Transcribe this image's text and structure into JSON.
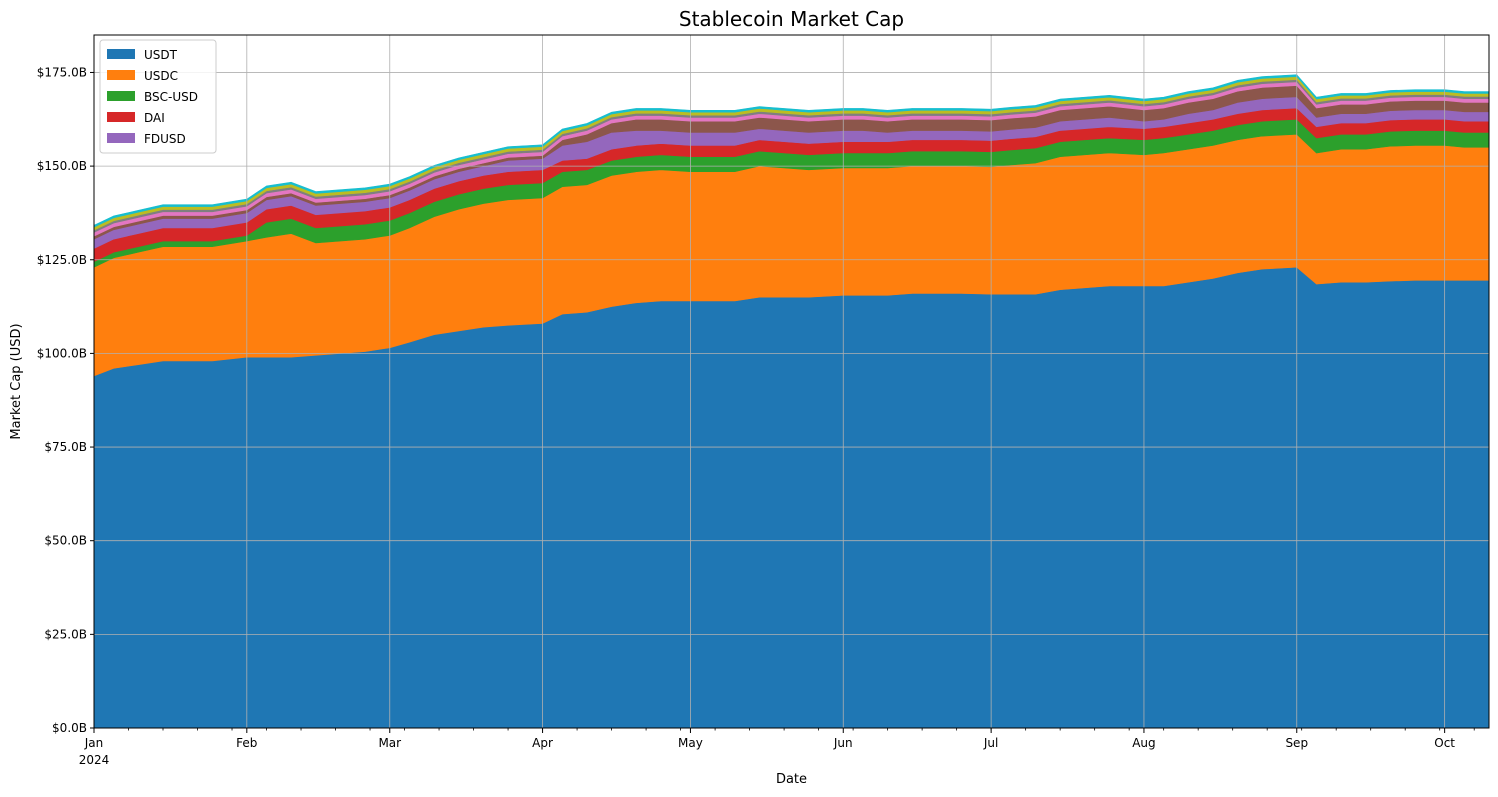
{
  "chart_data": {
    "type": "area",
    "stacked": true,
    "title": "Stablecoin Market Cap",
    "xlabel": "Date",
    "ylabel": "Market Cap (USD)",
    "x_range": [
      "2024-01-01",
      "2024-10-10"
    ],
    "ylim": [
      0,
      185
    ],
    "y_unit": "billion USD",
    "y_ticks": [
      0,
      25,
      50,
      75,
      100,
      125,
      150,
      175
    ],
    "y_tick_labels": [
      "$0.0B",
      "$25.0B",
      "$50.0B",
      "$75.0B",
      "$100.0B",
      "$125.0B",
      "$150.0B",
      "$175.0B"
    ],
    "x_ticks": [
      "2024-01-01",
      "2024-02-01",
      "2024-03-01",
      "2024-04-01",
      "2024-05-01",
      "2024-06-01",
      "2024-07-01",
      "2024-08-01",
      "2024-09-01",
      "2024-10-01"
    ],
    "x_tick_labels": [
      "Jan",
      "Feb",
      "Mar",
      "Apr",
      "May",
      "Jun",
      "Jul",
      "Aug",
      "Sep",
      "Oct"
    ],
    "x_tick_year_label": "2024",
    "grid": true,
    "legend_position": "top-left",
    "x": [
      "2024-01-01",
      "2024-01-05",
      "2024-01-10",
      "2024-01-15",
      "2024-01-20",
      "2024-01-25",
      "2024-02-01",
      "2024-02-05",
      "2024-02-10",
      "2024-02-15",
      "2024-02-20",
      "2024-02-25",
      "2024-03-01",
      "2024-03-05",
      "2024-03-10",
      "2024-03-15",
      "2024-03-20",
      "2024-03-25",
      "2024-04-01",
      "2024-04-05",
      "2024-04-10",
      "2024-04-15",
      "2024-04-20",
      "2024-04-25",
      "2024-05-01",
      "2024-05-05",
      "2024-05-10",
      "2024-05-15",
      "2024-05-20",
      "2024-05-25",
      "2024-06-01",
      "2024-06-05",
      "2024-06-10",
      "2024-06-15",
      "2024-06-20",
      "2024-06-25",
      "2024-07-01",
      "2024-07-05",
      "2024-07-10",
      "2024-07-15",
      "2024-07-20",
      "2024-07-25",
      "2024-08-01",
      "2024-08-05",
      "2024-08-10",
      "2024-08-15",
      "2024-08-20",
      "2024-08-25",
      "2024-09-01",
      "2024-09-05",
      "2024-09-10",
      "2024-09-15",
      "2024-09-20",
      "2024-09-25",
      "2024-10-01",
      "2024-10-05",
      "2024-10-10"
    ],
    "series": [
      {
        "name": "USDT",
        "color": "#1f77b4",
        "values": [
          94.0,
          96.0,
          97.0,
          98.0,
          98.0,
          98.0,
          99.0,
          99.0,
          99.0,
          99.5,
          100.0,
          100.5,
          101.5,
          103.0,
          105.0,
          106.0,
          107.0,
          107.5,
          108.0,
          110.5,
          111.0,
          112.5,
          113.5,
          114.0,
          114.0,
          114.0,
          114.0,
          115.0,
          115.0,
          115.0,
          115.5,
          115.5,
          115.5,
          116.0,
          116.0,
          116.0,
          115.8,
          115.8,
          115.8,
          117.0,
          117.5,
          118.0,
          118.0,
          118.0,
          119.0,
          120.0,
          121.5,
          122.5,
          123.0,
          118.5,
          119.0,
          119.0,
          119.3,
          119.5,
          119.5,
          119.5,
          119.5
        ]
      },
      {
        "name": "USDC",
        "color": "#ff7f0e",
        "values": [
          29.0,
          29.5,
          30.0,
          30.5,
          30.5,
          30.5,
          31.0,
          32.0,
          33.0,
          30.0,
          30.0,
          30.0,
          30.0,
          30.5,
          31.5,
          32.5,
          33.0,
          33.5,
          33.5,
          34.0,
          34.0,
          35.0,
          35.0,
          35.0,
          34.5,
          34.5,
          34.5,
          35.0,
          34.5,
          34.0,
          34.0,
          34.0,
          34.0,
          34.0,
          34.0,
          34.0,
          34.0,
          34.5,
          35.0,
          35.5,
          35.5,
          35.5,
          35.0,
          35.5,
          35.5,
          35.5,
          35.5,
          35.5,
          35.5,
          35.0,
          35.5,
          35.5,
          36.0,
          36.0,
          36.0,
          35.5,
          35.5
        ]
      },
      {
        "name": "BSC-USD",
        "color": "#2ca02c",
        "values": [
          1.5,
          1.5,
          1.5,
          1.5,
          1.5,
          1.5,
          1.5,
          4.0,
          4.0,
          4.0,
          4.0,
          4.0,
          4.0,
          4.0,
          4.0,
          4.0,
          4.0,
          4.0,
          4.0,
          4.0,
          4.0,
          4.0,
          4.0,
          4.0,
          4.0,
          4.0,
          4.0,
          4.0,
          4.0,
          4.0,
          4.0,
          4.0,
          4.0,
          4.0,
          4.0,
          4.0,
          4.0,
          4.0,
          4.0,
          4.0,
          4.0,
          4.0,
          4.0,
          4.0,
          4.0,
          4.0,
          4.0,
          4.0,
          4.0,
          4.0,
          4.0,
          4.0,
          4.0,
          4.0,
          4.0,
          4.0,
          4.0
        ]
      },
      {
        "name": "DAI",
        "color": "#d62728",
        "values": [
          3.5,
          3.5,
          3.5,
          3.5,
          3.5,
          3.5,
          3.5,
          3.5,
          3.5,
          3.5,
          3.5,
          3.5,
          3.5,
          3.5,
          3.5,
          3.5,
          3.5,
          3.5,
          3.5,
          3.0,
          3.0,
          3.0,
          3.0,
          3.0,
          3.0,
          3.0,
          3.0,
          3.0,
          3.0,
          3.0,
          3.0,
          3.0,
          3.0,
          3.0,
          3.0,
          3.0,
          3.0,
          3.0,
          3.0,
          3.0,
          3.0,
          3.0,
          3.0,
          3.0,
          3.0,
          3.0,
          3.0,
          3.0,
          3.0,
          3.0,
          3.0,
          3.0,
          3.0,
          3.0,
          3.0,
          3.0,
          3.0
        ]
      },
      {
        "name": "FDUSD",
        "color": "#9467bd",
        "values": [
          2.5,
          2.5,
          2.5,
          2.5,
          2.5,
          2.5,
          2.5,
          2.5,
          2.5,
          2.5,
          2.5,
          2.5,
          2.5,
          2.5,
          2.5,
          2.5,
          2.5,
          3.0,
          3.0,
          4.0,
          4.5,
          4.5,
          4.0,
          3.5,
          3.5,
          3.5,
          3.5,
          3.0,
          3.0,
          3.0,
          3.0,
          3.0,
          2.5,
          2.5,
          2.5,
          2.5,
          2.5,
          2.5,
          2.5,
          2.5,
          2.5,
          2.5,
          2.0,
          2.0,
          2.5,
          2.5,
          3.0,
          3.0,
          3.0,
          2.5,
          2.5,
          2.5,
          2.5,
          2.5,
          2.5,
          2.5,
          2.5
        ]
      },
      {
        "color": "#8c564b",
        "values": [
          0.8,
          0.8,
          0.8,
          0.8,
          0.8,
          0.8,
          0.8,
          0.8,
          0.8,
          0.8,
          0.8,
          0.8,
          0.8,
          0.8,
          0.8,
          0.8,
          0.8,
          0.8,
          0.8,
          1.5,
          2.0,
          2.5,
          3.0,
          3.0,
          3.0,
          3.0,
          3.0,
          3.0,
          3.0,
          3.0,
          3.0,
          3.0,
          3.0,
          3.0,
          3.0,
          3.0,
          3.0,
          3.0,
          3.0,
          3.0,
          3.0,
          3.0,
          3.0,
          3.0,
          3.0,
          3.0,
          3.0,
          3.0,
          3.0,
          2.5,
          2.5,
          2.5,
          2.5,
          2.5,
          2.5,
          2.5,
          2.5
        ]
      },
      {
        "color": "#e377c2",
        "values": [
          1.0,
          1.0,
          1.0,
          1.0,
          1.0,
          1.0,
          1.0,
          1.0,
          1.0,
          1.0,
          1.0,
          1.0,
          1.0,
          1.0,
          1.0,
          1.0,
          1.0,
          1.0,
          1.0,
          1.0,
          1.0,
          1.0,
          1.0,
          1.0,
          1.0,
          1.0,
          1.0,
          1.0,
          1.0,
          1.0,
          1.0,
          1.0,
          1.0,
          1.0,
          1.0,
          1.0,
          1.0,
          1.0,
          1.0,
          1.0,
          1.0,
          1.0,
          1.0,
          1.0,
          1.0,
          1.0,
          1.0,
          1.0,
          1.0,
          1.0,
          1.0,
          1.0,
          1.0,
          1.0,
          1.0,
          1.0,
          1.0
        ]
      },
      {
        "color": "#7f7f7f",
        "values": [
          0.6,
          0.6,
          0.6,
          0.6,
          0.6,
          0.6,
          0.6,
          0.6,
          0.6,
          0.6,
          0.6,
          0.6,
          0.6,
          0.6,
          0.6,
          0.6,
          0.6,
          0.6,
          0.6,
          0.6,
          0.6,
          0.6,
          0.6,
          0.6,
          0.6,
          0.6,
          0.6,
          0.6,
          0.6,
          0.6,
          0.6,
          0.6,
          0.6,
          0.6,
          0.6,
          0.6,
          0.6,
          0.6,
          0.6,
          0.6,
          0.6,
          0.6,
          0.6,
          0.6,
          0.6,
          0.6,
          0.6,
          0.6,
          0.6,
          0.6,
          0.6,
          0.6,
          0.6,
          0.6,
          0.6,
          0.6,
          0.6
        ]
      },
      {
        "color": "#bcbd22",
        "values": [
          0.8,
          0.8,
          0.8,
          0.8,
          0.8,
          0.8,
          0.8,
          0.8,
          0.8,
          0.8,
          0.8,
          0.8,
          0.8,
          0.8,
          0.8,
          0.8,
          0.8,
          0.8,
          0.8,
          0.8,
          0.8,
          0.8,
          0.8,
          0.8,
          0.8,
          0.8,
          0.8,
          0.8,
          0.8,
          0.8,
          0.8,
          0.8,
          0.8,
          0.8,
          0.8,
          0.8,
          0.8,
          0.8,
          0.8,
          0.8,
          0.8,
          0.8,
          0.8,
          0.8,
          0.8,
          0.8,
          0.8,
          0.8,
          0.8,
          0.8,
          0.8,
          0.8,
          0.8,
          0.8,
          0.8,
          0.8,
          0.8
        ]
      },
      {
        "color": "#17becf",
        "values": [
          0.5,
          0.5,
          0.5,
          0.5,
          0.5,
          0.5,
          0.5,
          0.5,
          0.5,
          0.5,
          0.5,
          0.5,
          0.5,
          0.5,
          0.5,
          0.5,
          0.5,
          0.5,
          0.5,
          0.5,
          0.5,
          0.5,
          0.5,
          0.5,
          0.5,
          0.5,
          0.5,
          0.5,
          0.5,
          0.5,
          0.5,
          0.5,
          0.5,
          0.5,
          0.5,
          0.5,
          0.5,
          0.5,
          0.5,
          0.5,
          0.5,
          0.5,
          0.5,
          0.5,
          0.5,
          0.5,
          0.5,
          0.5,
          0.5,
          0.5,
          0.5,
          0.5,
          0.5,
          0.5,
          0.5,
          0.5,
          0.5
        ]
      }
    ]
  }
}
